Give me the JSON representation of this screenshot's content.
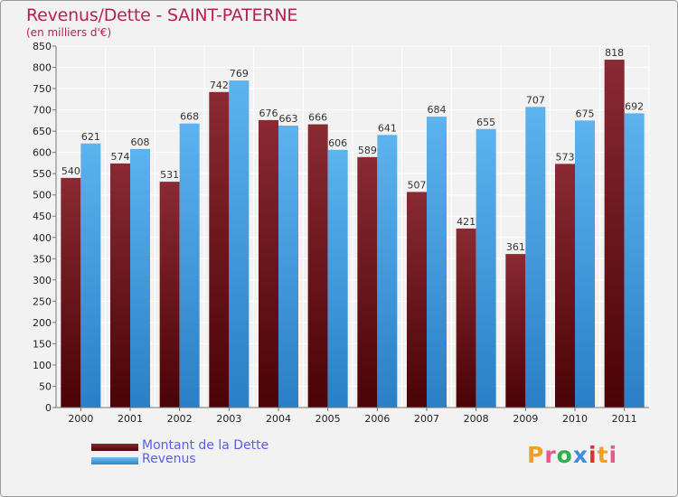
{
  "chart_data": {
    "type": "bar",
    "title": "Revenus/Dette - SAINT-PATERNE",
    "subtitle": "(en milliers d'€)",
    "categories": [
      "2000",
      "2001",
      "2002",
      "2003",
      "2004",
      "2005",
      "2006",
      "2007",
      "2008",
      "2009",
      "2010",
      "2011"
    ],
    "series": [
      {
        "name": "Montant de la Dette",
        "color": "#6b0d12",
        "values": [
          540,
          574,
          531,
          742,
          676,
          666,
          589,
          507,
          421,
          361,
          573,
          818
        ]
      },
      {
        "name": "Revenus",
        "color": "#4aa3e6",
        "values": [
          621,
          608,
          668,
          769,
          663,
          606,
          641,
          684,
          655,
          707,
          675,
          692
        ]
      }
    ],
    "ylim": [
      0,
      850
    ],
    "yticks": [
      0,
      50,
      100,
      150,
      200,
      250,
      300,
      350,
      400,
      450,
      500,
      550,
      600,
      650,
      700,
      750,
      800,
      850
    ],
    "grid": true,
    "legend_position": "bottom-left"
  },
  "logo": {
    "letters": [
      "P",
      "r",
      "o",
      "x",
      "i",
      "t",
      "i"
    ],
    "colors": [
      "#f0a020",
      "#e65a8a",
      "#2bb14a",
      "#3b8fe0",
      "#e03030",
      "#f0a020",
      "#e65a8a"
    ]
  }
}
